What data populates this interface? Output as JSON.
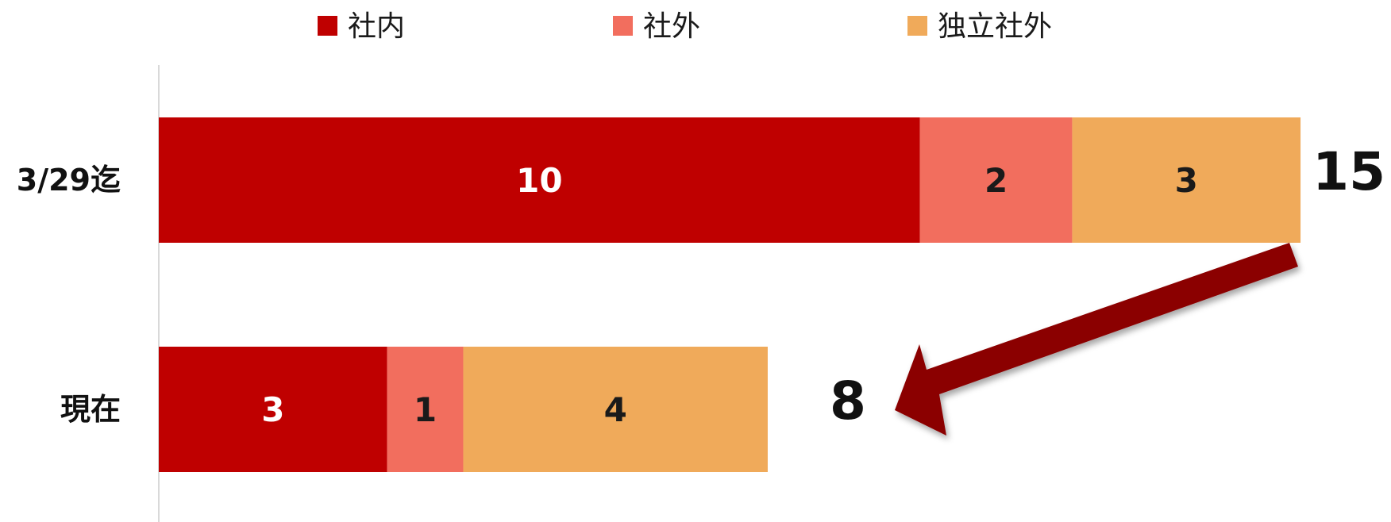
{
  "chart_data": {
    "type": "bar",
    "orientation": "horizontal",
    "stacked": true,
    "categories": [
      "3/29迄",
      "現在"
    ],
    "series": [
      {
        "name": "社内",
        "values": [
          10,
          3
        ],
        "color": "#bf0000",
        "label_color": "#ffffff"
      },
      {
        "name": "社外",
        "values": [
          2,
          1
        ],
        "color": "#f26e5e",
        "label_color": "#1a1a1a"
      },
      {
        "name": "独立社外",
        "values": [
          3,
          4
        ],
        "color": "#f0aa5a",
        "label_color": "#1a1a1a"
      }
    ],
    "totals": [
      15,
      8
    ],
    "legend_position": "top",
    "grid": false,
    "annotation": {
      "type": "arrow",
      "from": "3/29迄",
      "to": "現在",
      "color": "#8b0000"
    }
  }
}
